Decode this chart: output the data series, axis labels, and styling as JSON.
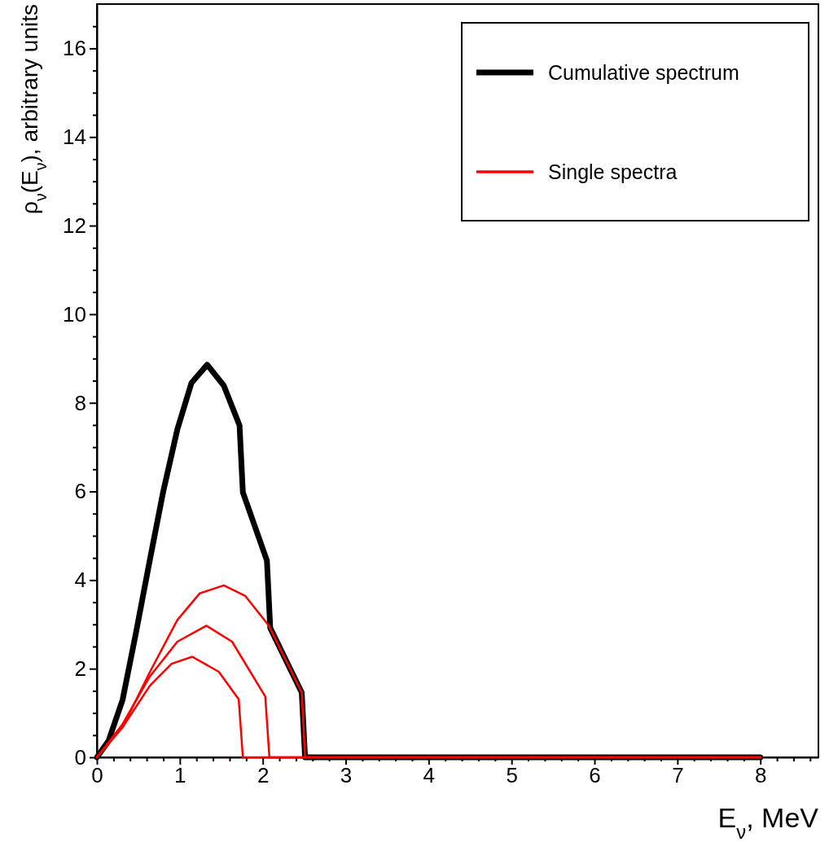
{
  "chart_data": {
    "type": "line",
    "xlabel": "E$_{ν}$, MeV",
    "ylabel": "ρ$_{ν}$(E$_{ν}$), arbitrary units",
    "xlim": [
      0,
      8.7
    ],
    "ylim": [
      0,
      17
    ],
    "xticks": [
      0,
      {
        "value": 0.2,
        "label": null
      },
      {
        "value": 0.4,
        "label": null
      },
      {
        "value": 0.6,
        "label": null
      },
      {
        "value": 0.8,
        "label": null
      },
      1,
      {
        "value": 1.2,
        "label": null
      },
      {
        "value": 1.4,
        "label": null
      },
      {
        "value": 1.6,
        "label": null
      },
      {
        "value": 1.8,
        "label": null
      },
      2,
      {
        "value": 2.2,
        "label": null
      },
      {
        "value": 2.4,
        "label": null
      },
      {
        "value": 2.6,
        "label": null
      },
      {
        "value": 2.8,
        "label": null
      },
      3,
      {
        "value": 3.2,
        "label": null
      },
      {
        "value": 3.4,
        "label": null
      },
      {
        "value": 3.6,
        "label": null
      },
      {
        "value": 3.8,
        "label": null
      },
      4,
      {
        "value": 4.2,
        "label": null
      },
      {
        "value": 4.4,
        "label": null
      },
      {
        "value": 4.6,
        "label": null
      },
      {
        "value": 4.8,
        "label": null
      },
      5,
      {
        "value": 5.2,
        "label": null
      },
      {
        "value": 5.4,
        "label": null
      },
      {
        "value": 5.6,
        "label": null
      },
      {
        "value": 5.8,
        "label": null
      },
      6,
      {
        "value": 6.2,
        "label": null
      },
      {
        "value": 6.4,
        "label": null
      },
      {
        "value": 6.6,
        "label": null
      },
      {
        "value": 6.8,
        "label": null
      },
      7,
      {
        "value": 7.2,
        "label": null
      },
      {
        "value": 7.4,
        "label": null
      },
      {
        "value": 7.6,
        "label": null
      },
      {
        "value": 7.8,
        "label": null
      },
      8,
      {
        "value": 8.2,
        "label": null
      },
      {
        "value": 8.4,
        "label": null
      },
      {
        "value": 8.6,
        "label": null
      }
    ],
    "yticks": [
      0,
      {
        "value": 0.5,
        "label": null
      },
      {
        "value": 1,
        "label": null
      },
      {
        "value": 1.5,
        "label": null
      },
      2,
      {
        "value": 2.5,
        "label": null
      },
      {
        "value": 3,
        "label": null
      },
      {
        "value": 3.5,
        "label": null
      },
      4,
      {
        "value": 4.5,
        "label": null
      },
      {
        "value": 5,
        "label": null
      },
      {
        "value": 5.5,
        "label": null
      },
      6,
      {
        "value": 6.5,
        "label": null
      },
      {
        "value": 7,
        "label": null
      },
      {
        "value": 7.5,
        "label": null
      },
      8,
      {
        "value": 8.5,
        "label": null
      },
      {
        "value": 9,
        "label": null
      },
      {
        "value": 9.5,
        "label": null
      },
      10,
      {
        "value": 10.5,
        "label": null
      },
      {
        "value": 11,
        "label": null
      },
      {
        "value": 11.5,
        "label": null
      },
      12,
      {
        "value": 12.5,
        "label": null
      },
      {
        "value": 13,
        "label": null
      },
      {
        "value": 13.5,
        "label": null
      },
      14,
      {
        "value": 14.5,
        "label": null
      },
      {
        "value": 15,
        "label": null
      },
      {
        "value": 15.5,
        "label": null
      },
      16,
      {
        "value": 16.5,
        "label": null
      }
    ],
    "grid": false,
    "legend": "top right",
    "marker": "none",
    "line_style": "solid",
    "series": [
      {
        "name": "Cumulative spectrum",
        "color": "#000000",
        "x": [
          0,
          0.14,
          0.31,
          0.47,
          0.64,
          0.8,
          0.97,
          1.14,
          1.33,
          1.53,
          1.72,
          1.76,
          2.05,
          2.09,
          2.47,
          2.51,
          8
        ],
        "values": [
          0,
          0.37,
          1.3,
          2.8,
          4.47,
          6.0,
          7.4,
          8.45,
          8.86,
          8.39,
          7.49,
          5.98,
          4.44,
          2.92,
          1.46,
          0,
          0
        ]
      },
      {
        "name": "Single spectra",
        "color": "#ff0000",
        "x": [
          0,
          0.31,
          0.64,
          0.97,
          1.24,
          1.53,
          1.79,
          2.07,
          2.47,
          2.51,
          8
        ],
        "values": [
          0,
          0.68,
          1.93,
          3.1,
          3.7,
          3.88,
          3.64,
          2.98,
          1.46,
          0,
          0
        ]
      },
      {
        "color": "#ff0000",
        "x": [
          0,
          0.31,
          0.64,
          0.97,
          1.32,
          1.63,
          2.03,
          2.08,
          8
        ],
        "values": [
          0,
          0.75,
          1.83,
          2.61,
          2.97,
          2.61,
          1.37,
          0,
          0
        ]
      },
      {
        "color": "#ff0000",
        "x": [
          0,
          0.31,
          0.64,
          0.9,
          1.15,
          1.47,
          1.71,
          1.76,
          8
        ],
        "values": [
          0,
          0.68,
          1.62,
          2.11,
          2.27,
          1.93,
          1.31,
          0,
          0
        ]
      }
    ]
  }
}
